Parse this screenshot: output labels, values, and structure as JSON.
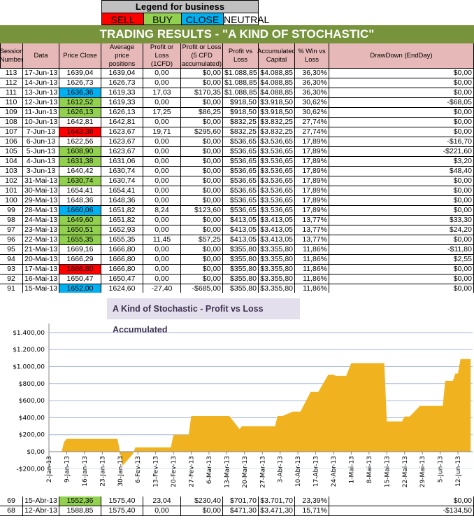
{
  "legend": {
    "title": "Legend for business",
    "items": [
      {
        "label": "SELL",
        "color": "#ff0000"
      },
      {
        "label": "BUY",
        "color": "#92d050"
      },
      {
        "label": "CLOSE",
        "color": "#00b0f0"
      },
      {
        "label": "NEUTRAL",
        "color": "#ffffff"
      }
    ]
  },
  "banner": "TRADING RESULTS - \"A KIND OF STOCHASTIC\"",
  "colors": {
    "banner": "#77933c",
    "header": "#e6b8b7",
    "sell": "#ff0000",
    "buy": "#92d050",
    "close": "#00b0f0",
    "area": "#f0b31f"
  },
  "table": {
    "columns": [
      "Session Number",
      "Data",
      "Price Close",
      "Average price positions",
      "Profit or Loss (1CFD)",
      "Profit or Loss (5 CFD accumulated)",
      "Profit vs Loss",
      "Accumulated Capital",
      "% Win vs Loss",
      "DrawDown (EndDay)"
    ],
    "rows": [
      {
        "signal": "neutral",
        "cells": [
          "113",
          "17-Jun-13",
          "1639,04",
          "1639,04",
          "0,00",
          "$0,00",
          "$1.088,85",
          "$4.088,85",
          "36,30%",
          "$0,00"
        ]
      },
      {
        "signal": "neutral",
        "cells": [
          "112",
          "14-Jun-13",
          "1626,73",
          "1626,73",
          "0,00",
          "$0,00",
          "$1.088,85",
          "$4.088,85",
          "36,30%",
          "$0,00"
        ]
      },
      {
        "signal": "close",
        "cells": [
          "111",
          "13-Jun-13",
          "1636,36",
          "1619,33",
          "17,03",
          "$170,35",
          "$1.088,85",
          "$4.088,85",
          "36,30%",
          "$0,00"
        ]
      },
      {
        "signal": "buy",
        "cells": [
          "110",
          "12-Jun-13",
          "1612,52",
          "1619,33",
          "0,00",
          "$0,00",
          "$918,50",
          "$3.918,50",
          "30,62%",
          "-$68,05"
        ]
      },
      {
        "signal": "buy",
        "cells": [
          "109",
          "11-Jun-13",
          "1626,13",
          "1626,13",
          "17,25",
          "$86,25",
          "$918,50",
          "$3.918,50",
          "30,62%",
          "$0,00"
        ]
      },
      {
        "signal": "neutral",
        "cells": [
          "108",
          "10-Jun-13",
          "1642,81",
          "1642,81",
          "0,00",
          "$0,00",
          "$832,25",
          "$3.832,25",
          "27,74%",
          "$0,00"
        ]
      },
      {
        "signal": "sell",
        "cells": [
          "107",
          "7-Jun-13",
          "1643,38",
          "1623,67",
          "19,71",
          "$295,60",
          "$832,25",
          "$3.832,25",
          "27,74%",
          "$0,00"
        ]
      },
      {
        "signal": "neutral",
        "cells": [
          "106",
          "6-Jun-13",
          "1622,56",
          "1623,67",
          "0,00",
          "$0,00",
          "$536,65",
          "$3.536,65",
          "17,89%",
          "-$16,70"
        ]
      },
      {
        "signal": "buy",
        "cells": [
          "105",
          "5-Jun-13",
          "1608,90",
          "1623,67",
          "0,00",
          "$0,00",
          "$536,65",
          "$3.536,65",
          "17,89%",
          "-$221,60"
        ]
      },
      {
        "signal": "buy",
        "cells": [
          "104",
          "4-Jun-13",
          "1631,38",
          "1631,06",
          "0,00",
          "$0,00",
          "$536,65",
          "$3.536,65",
          "17,89%",
          "$3,20"
        ]
      },
      {
        "signal": "neutral",
        "cells": [
          "103",
          "3-Jun-13",
          "1640,42",
          "1630,74",
          "0,00",
          "$0,00",
          "$536,65",
          "$3.536,65",
          "17,89%",
          "$48,40"
        ]
      },
      {
        "signal": "buy",
        "cells": [
          "102",
          "31-Mai-13",
          "1630,74",
          "1630,74",
          "0,00",
          "$0,00",
          "$536,65",
          "$3.536,65",
          "17,89%",
          "$0,00"
        ]
      },
      {
        "signal": "neutral",
        "cells": [
          "101",
          "30-Mai-13",
          "1654,41",
          "1654,41",
          "0,00",
          "$0,00",
          "$536,65",
          "$3.536,65",
          "17,89%",
          "$0,00"
        ]
      },
      {
        "signal": "neutral",
        "cells": [
          "100",
          "29-Mai-13",
          "1648,36",
          "1648,36",
          "0,00",
          "$0,00",
          "$536,65",
          "$3.536,65",
          "17,89%",
          "$0,00"
        ]
      },
      {
        "signal": "close",
        "cells": [
          "99",
          "28-Mai-13",
          "1660,06",
          "1651,82",
          "8,24",
          "$123,60",
          "$536,65",
          "$3.536,65",
          "17,89%",
          "$0,00"
        ]
      },
      {
        "signal": "buy",
        "cells": [
          "98",
          "24-Mai-13",
          "1649,60",
          "1651,82",
          "0,00",
          "$0,00",
          "$413,05",
          "$3.413,05",
          "13,77%",
          "$33,30"
        ]
      },
      {
        "signal": "buy",
        "cells": [
          "97",
          "23-Mai-13",
          "1650,51",
          "1652,93",
          "0,00",
          "$0,00",
          "$413,05",
          "$3.413,05",
          "13,77%",
          "$24,20"
        ]
      },
      {
        "signal": "buy",
        "cells": [
          "96",
          "22-Mai-13",
          "1655,35",
          "1655,35",
          "11,45",
          "$57,25",
          "$413,05",
          "$3.413,05",
          "13,77%",
          "$0,00"
        ]
      },
      {
        "signal": "neutral",
        "cells": [
          "95",
          "21-Mai-13",
          "1669,16",
          "1666,80",
          "0,00",
          "$0,00",
          "$355,80",
          "$3.355,80",
          "11,86%",
          "-$11,80"
        ]
      },
      {
        "signal": "neutral",
        "cells": [
          "94",
          "20-Mai-13",
          "1666,29",
          "1666,80",
          "0,00",
          "$0,00",
          "$355,80",
          "$3.355,80",
          "11,86%",
          "$2,55"
        ]
      },
      {
        "signal": "sell",
        "cells": [
          "93",
          "17-Mai-13",
          "1666,80",
          "1666,80",
          "0,00",
          "$0,00",
          "$355,80",
          "$3.355,80",
          "11,86%",
          "$0,00"
        ]
      },
      {
        "signal": "neutral",
        "cells": [
          "92",
          "16-Mai-13",
          "1650,47",
          "1650,47",
          "0,00",
          "$0,00",
          "$355,80",
          "$3.355,80",
          "11,86%",
          "$0,00"
        ]
      },
      {
        "signal": "close",
        "cells": [
          "91",
          "15-Mai-13",
          "1652,00",
          "1624,60",
          "-27,40",
          "-$685,00",
          "$355,80",
          "$3.355,80",
          "11,86%",
          "$0,00"
        ]
      }
    ],
    "bottom_rows": [
      {
        "signal": "buy",
        "cells": [
          "69",
          "15-Abr-13",
          "1552,36",
          "1575,40",
          "23,04",
          "$230,40",
          "$701,70",
          "$3.701,70",
          "23,39%",
          "$0,00"
        ]
      },
      {
        "signal": "neutral",
        "cells": [
          "68",
          "12-Abr-13",
          "1588,85",
          "1575,40",
          "0,00",
          "$0,00",
          "$471,30",
          "$3.471,30",
          "15,71%",
          "-$134,50"
        ]
      }
    ]
  },
  "chart_data": {
    "type": "area",
    "title": "A Kind of Stochastic - Profit vs Loss Accumulated",
    "xlabel": "",
    "ylabel": "",
    "ylim": [
      -200,
      1400
    ],
    "xlim": [
      "2013-01-02",
      "2013-06-17"
    ],
    "grid": true,
    "y_ticks": [
      "-$200,00",
      "$0,00",
      "$200,00",
      "$400,00",
      "$600,00",
      "$800,00",
      "$1.000,00",
      "$1.200,00",
      "$1.400,00"
    ],
    "y_tick_values": [
      -200,
      0,
      200,
      400,
      600,
      800,
      1000,
      1200,
      1400
    ],
    "x_ticks": [
      "2-Jan-13",
      "9-Jan-13",
      "16-Jan-13",
      "23-Jan-13",
      "30-Jan-13",
      "6-Fev-13",
      "13-Fev-13",
      "20-Fev-13",
      "27-Fev-13",
      "6-Mar-13",
      "13-Mar-13",
      "20-Mar-13",
      "27-Mar-13",
      "3-Abr-13",
      "10-Abr-13",
      "17-Abr-13",
      "24-Abr-13",
      "1-Mai-13",
      "8-Mai-13",
      "15-Mai-13",
      "22-Mai-13",
      "29-Mai-13",
      "5-Jun-13",
      "12-Jun-13"
    ],
    "x_tick_dates": [
      "2013-01-02",
      "2013-01-09",
      "2013-01-16",
      "2013-01-23",
      "2013-01-30",
      "2013-02-06",
      "2013-02-13",
      "2013-02-20",
      "2013-02-27",
      "2013-03-06",
      "2013-03-13",
      "2013-03-20",
      "2013-03-27",
      "2013-04-03",
      "2013-04-10",
      "2013-04-17",
      "2013-04-24",
      "2013-05-01",
      "2013-05-08",
      "2013-05-15",
      "2013-05-22",
      "2013-05-29",
      "2013-06-05",
      "2013-06-12"
    ],
    "series": [
      {
        "x": [
          "2013-01-07",
          "2013-01-08",
          "2013-01-09",
          "2013-01-29",
          "2013-01-31",
          "2013-02-04",
          "2013-02-05",
          "2013-02-19",
          "2013-02-20",
          "2013-02-26",
          "2013-02-27",
          "2013-03-14",
          "2013-03-18",
          "2013-03-19",
          "2013-04-01",
          "2013-04-02",
          "2013-04-04",
          "2013-04-08",
          "2013-04-11",
          "2013-04-15",
          "2013-04-18",
          "2013-04-22",
          "2013-04-24",
          "2013-04-25",
          "2013-04-29",
          "2013-05-01",
          "2013-05-14",
          "2013-05-15",
          "2013-05-21",
          "2013-05-22",
          "2013-05-24",
          "2013-05-28",
          "2013-06-06",
          "2013-06-07",
          "2013-06-10",
          "2013-06-11",
          "2013-06-12",
          "2013-06-13",
          "2013-06-17"
        ],
        "values": [
          0,
          118,
          150,
          150,
          -165,
          -30,
          50,
          50,
          200,
          200,
          420,
          420,
          265,
          300,
          300,
          420,
          420,
          471.3,
          471.3,
          701.7,
          701.7,
          905,
          905,
          890,
          890,
          1040,
          1040,
          355.8,
          355.8,
          413.05,
          413.05,
          536.65,
          536.65,
          832.25,
          832.25,
          918.5,
          918.5,
          1088.85,
          1088.85
        ]
      }
    ]
  }
}
